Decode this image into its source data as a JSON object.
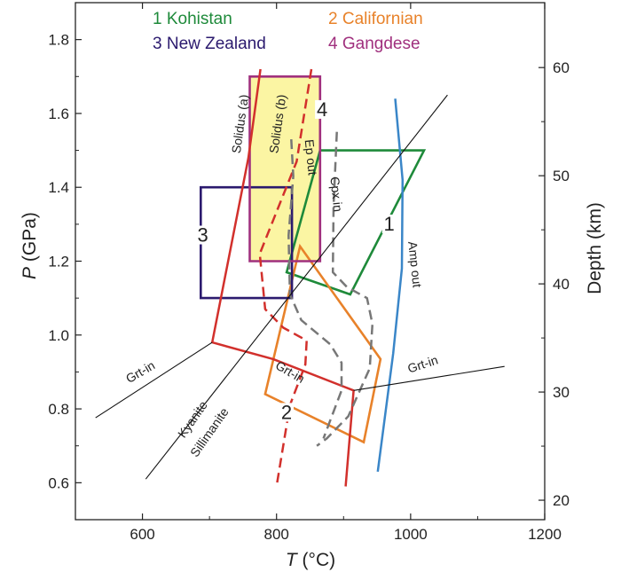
{
  "chart_data": {
    "type": "line",
    "title": "",
    "xlabel": {
      "symbol": "T",
      "unit": "(°C)"
    },
    "ylabel": {
      "symbol": "P",
      "unit": "(GPa)"
    },
    "y2label": "Depth (km)",
    "xlim": [
      500,
      1200
    ],
    "ylim": [
      0.5,
      1.9
    ],
    "y2lim": [
      18.2,
      66.0
    ],
    "x_ticks": [
      600,
      800,
      1000,
      1200
    ],
    "x_minor_ticks": [
      700,
      900,
      1100
    ],
    "y_ticks": [
      "0.6",
      "0.8",
      "1.0",
      "1.2",
      "1.4",
      "1.6",
      "1.8"
    ],
    "y_minor_ticks": [
      0.7,
      0.9,
      1.1,
      1.3,
      1.5,
      1.7
    ],
    "y2_ticks": [
      20,
      30,
      40,
      50,
      60
    ],
    "grid": false,
    "legend": {
      "placement": "top",
      "items": [
        {
          "text": "1 Kohistan",
          "color": "#1e8a3a"
        },
        {
          "text": "2 Californian",
          "color": "#e8822a"
        },
        {
          "text": "3 New Zealand",
          "color": "#2b1a6e"
        },
        {
          "text": "4 Gangdese",
          "color": "#a0307e"
        }
      ]
    },
    "fields": [
      {
        "number": "1",
        "name": "Kohistan",
        "color": "#1e8a3a",
        "label_pos": [
          968,
          1.29
        ],
        "points": [
          [
            865,
            1.5
          ],
          [
            1020,
            1.5
          ],
          [
            910,
            1.11
          ],
          [
            815,
            1.17
          ],
          [
            865,
            1.5
          ]
        ]
      },
      {
        "number": "2",
        "name": "Californian",
        "color": "#e8822a",
        "label_pos": [
          815,
          0.78
        ],
        "points": [
          [
            835,
            1.24
          ],
          [
            955,
            0.935
          ],
          [
            930,
            0.71
          ],
          [
            783,
            0.84
          ],
          [
            835,
            1.24
          ]
        ]
      },
      {
        "number": "3",
        "name": "New Zealand",
        "color": "#2b1a6e",
        "label_pos": [
          690,
          1.26
        ],
        "points": [
          [
            687,
            1.4
          ],
          [
            823,
            1.4
          ],
          [
            823,
            1.1
          ],
          [
            687,
            1.1
          ],
          [
            687,
            1.4
          ]
        ]
      },
      {
        "number": "4",
        "name": "Gangdese",
        "color": "#a0307e",
        "fill": "#fbf5a3",
        "label_pos": [
          868,
          1.6
        ],
        "points": [
          [
            760,
            1.7
          ],
          [
            865,
            1.7
          ],
          [
            865,
            1.2
          ],
          [
            760,
            1.2
          ],
          [
            760,
            1.7
          ]
        ]
      }
    ],
    "curves": [
      {
        "name": "Solidus (a)",
        "color": "#d2302c",
        "style": "solid",
        "width": 2.5,
        "points": [
          [
            776,
            1.72
          ],
          [
            758,
            1.48
          ],
          [
            704,
            0.98
          ],
          [
            795,
            0.935
          ],
          [
            915,
            0.85
          ],
          [
            903,
            0.59
          ]
        ],
        "label": {
          "text": "Solidus (a)",
          "pos": [
            752,
            1.57
          ],
          "angle": -82
        }
      },
      {
        "name": "Solidus (b)",
        "color": "#d2302c",
        "style": "dashed",
        "width": 2.5,
        "points": [
          [
            852,
            1.72
          ],
          [
            830,
            1.47
          ],
          [
            775,
            1.22
          ],
          [
            783,
            1.07
          ],
          [
            810,
            1.02
          ],
          [
            845,
            0.985
          ],
          [
            843,
            0.92
          ],
          [
            820,
            0.81
          ],
          [
            800,
            0.59
          ]
        ],
        "label": {
          "text": "Solidus (b)",
          "pos": [
            808,
            1.57
          ],
          "angle": -82
        }
      },
      {
        "name": "Ep out",
        "color": "#777777",
        "style": "dashed",
        "width": 2.5,
        "points": [
          [
            822,
            1.53
          ],
          [
            825,
            1.43
          ],
          [
            818,
            1.27
          ],
          [
            820,
            1.11
          ],
          [
            837,
            1.04
          ],
          [
            880,
            0.975
          ],
          [
            897,
            0.925
          ],
          [
            897,
            0.85
          ],
          [
            870,
            0.72
          ]
        ],
        "label": {
          "text": "Ep out",
          "pos": [
            845,
            1.48
          ],
          "angle": 84
        }
      },
      {
        "name": "Cpx in",
        "color": "#777777",
        "style": "dashed",
        "width": 2.5,
        "points": [
          [
            890,
            1.55
          ],
          [
            885,
            1.35
          ],
          [
            884,
            1.17
          ],
          [
            905,
            1.13
          ],
          [
            935,
            1.1
          ],
          [
            943,
            1.03
          ],
          [
            939,
            0.91
          ],
          [
            907,
            0.78
          ],
          [
            875,
            0.72
          ],
          [
            860,
            0.7
          ]
        ],
        "label": {
          "text": "Cpx in",
          "pos": [
            883,
            1.38
          ],
          "angle": 84
        }
      },
      {
        "name": "Amp out",
        "color": "#3a86c8",
        "style": "solid",
        "width": 2.5,
        "points": [
          [
            977,
            1.64
          ],
          [
            988,
            1.42
          ],
          [
            987,
            1.18
          ],
          [
            974,
            0.95
          ],
          [
            951,
            0.63
          ]
        ],
        "label": {
          "text": "Amp out",
          "pos": [
            1000,
            1.19
          ],
          "angle": 84
        }
      },
      {
        "name": "Kyanite–Sillimanite",
        "color": "#111111",
        "style": "solid",
        "width": 1.1,
        "points": [
          [
            605,
            0.61
          ],
          [
            1055,
            1.65
          ]
        ],
        "label": {
          "text": "Kyanite",
          "pos": [
            680,
            0.765
          ],
          "angle": -55
        },
        "label2": {
          "text": "Sillimanite",
          "pos": [
            705,
            0.73
          ],
          "angle": -55
        }
      },
      {
        "name": "Grt-in",
        "color": "#111111",
        "style": "solid",
        "width": 1.1,
        "points": [
          [
            530,
            0.776
          ],
          [
            704,
            0.98
          ]
        ],
        "label": {
          "text": "Grt-in",
          "pos": [
            600,
            0.89
          ],
          "angle": -30
        }
      },
      {
        "name": "Grt-in (middle)",
        "color": "#111111",
        "style": "none",
        "width": 0,
        "points": [],
        "label": {
          "text": "Grt-in",
          "pos": [
            817,
            0.89
          ],
          "angle": 30
        }
      },
      {
        "name": "Grt-in (right)",
        "color": "#111111",
        "style": "solid",
        "width": 1.1,
        "points": [
          [
            915,
            0.85
          ],
          [
            1140,
            0.915
          ]
        ],
        "label": {
          "text": "Grt-in",
          "pos": [
            1020,
            0.91
          ],
          "angle": -18
        }
      }
    ]
  }
}
